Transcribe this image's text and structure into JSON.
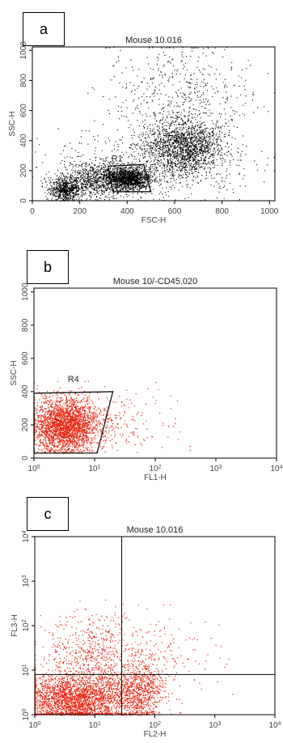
{
  "chart_data": [
    {
      "panel_label": "a",
      "type": "scatter",
      "title": "Mouse 10.016",
      "xlabel": "FSC-H",
      "ylabel": "SSC-H",
      "x_scale": "linear",
      "y_scale": "linear",
      "xlim": [
        0,
        1023
      ],
      "ylim": [
        0,
        1023
      ],
      "xticks": [
        "0",
        "200",
        "400",
        "600",
        "800",
        "1000"
      ],
      "yticks": [
        "0",
        "200",
        "400",
        "600",
        "800",
        "1000"
      ],
      "xtick_values": [
        0,
        200,
        400,
        600,
        800,
        1000
      ],
      "ytick_values": [
        0,
        200,
        400,
        600,
        800,
        1000
      ],
      "point_color": "#000000",
      "gates": [
        {
          "label": "R1",
          "polygon": [
            [
              340,
              60
            ],
            [
              500,
              60
            ],
            [
              470,
              240
            ],
            [
              320,
              230
            ]
          ]
        }
      ],
      "populations": [
        {
          "cx": 140,
          "cy": 80,
          "sx": 35,
          "sy": 40,
          "n": 700,
          "min_y": 0
        },
        {
          "cx": 250,
          "cy": 140,
          "sx": 55,
          "sy": 60,
          "n": 600,
          "min_y": 0
        },
        {
          "cx": 400,
          "cy": 150,
          "sx": 50,
          "sy": 40,
          "n": 1600,
          "min_y": 0
        },
        {
          "cx": 640,
          "cy": 360,
          "sx": 80,
          "sy": 90,
          "n": 1700,
          "min_y": 0
        },
        {
          "cx": 620,
          "cy": 700,
          "sx": 150,
          "sy": 170,
          "n": 500,
          "min_y": 0
        },
        {
          "cx": 520,
          "cy": 250,
          "sx": 220,
          "sy": 140,
          "n": 500,
          "min_y": 0
        }
      ]
    },
    {
      "panel_label": "b",
      "type": "scatter",
      "title": "Mouse 10/-CD45.020",
      "xlabel": "FL1-H",
      "ylabel": "SSC-H",
      "x_scale": "log",
      "y_scale": "linear",
      "xlim": [
        1,
        10000
      ],
      "ylim": [
        0,
        1023
      ],
      "xticks": [
        "10^0",
        "10^1",
        "10^2",
        "10^3",
        "10^4"
      ],
      "yticks": [
        "0",
        "200",
        "400",
        "600",
        "800",
        "1000"
      ],
      "xtick_values": [
        1,
        10,
        100,
        1000,
        10000
      ],
      "ytick_values": [
        0,
        200,
        400,
        600,
        800,
        1000
      ],
      "point_color": "#e8220e",
      "gates": [
        {
          "label": "R4",
          "polygon": [
            [
              1,
              30
            ],
            [
              11,
              30
            ],
            [
              20,
              400
            ],
            [
              1,
              390
            ]
          ]
        }
      ],
      "populations": [
        {
          "log_cx": 0.5,
          "cy": 200,
          "log_sx": 0.28,
          "sy": 80,
          "n": 6000,
          "min_y": 30
        },
        {
          "log_cx": 1.5,
          "cy": 230,
          "log_sx": 0.45,
          "sy": 90,
          "n": 150,
          "min_y": 30
        }
      ]
    },
    {
      "panel_label": "c",
      "type": "scatter",
      "title": "Mouse 10.016",
      "xlabel": "FL2-H",
      "ylabel": "FL3-H",
      "x_scale": "log",
      "y_scale": "log",
      "xlim": [
        1,
        10000
      ],
      "ylim": [
        1,
        10000
      ],
      "xticks": [
        "10^0",
        "10^1",
        "10^2",
        "10^3",
        "10^4"
      ],
      "yticks": [
        "10^0",
        "10^1",
        "10^2",
        "10^3",
        "10^4"
      ],
      "xtick_values": [
        1,
        10,
        100,
        1000,
        10000
      ],
      "ytick_values": [
        1,
        10,
        100,
        1000,
        10000
      ],
      "point_color": "#e8220e",
      "quadrant_lines": {
        "x": 28,
        "y": 8
      },
      "populations": [
        {
          "log_cx": 0.6,
          "log_cy": 0.35,
          "log_sx": 0.45,
          "log_sy": 0.28,
          "n": 7000,
          "min_log_y": 0.0
        },
        {
          "log_cx": 1.0,
          "log_cy": 1.25,
          "log_sx": 0.4,
          "log_sy": 0.5,
          "n": 700,
          "min_log_y": 0.0
        },
        {
          "log_cx": 1.7,
          "log_cy": 0.5,
          "log_sx": 0.25,
          "log_sy": 0.35,
          "n": 900,
          "min_log_y": 0.0
        },
        {
          "log_cx": 2.1,
          "log_cy": 1.4,
          "log_sx": 0.5,
          "log_sy": 0.45,
          "n": 150,
          "min_log_y": 0.0
        }
      ]
    }
  ]
}
